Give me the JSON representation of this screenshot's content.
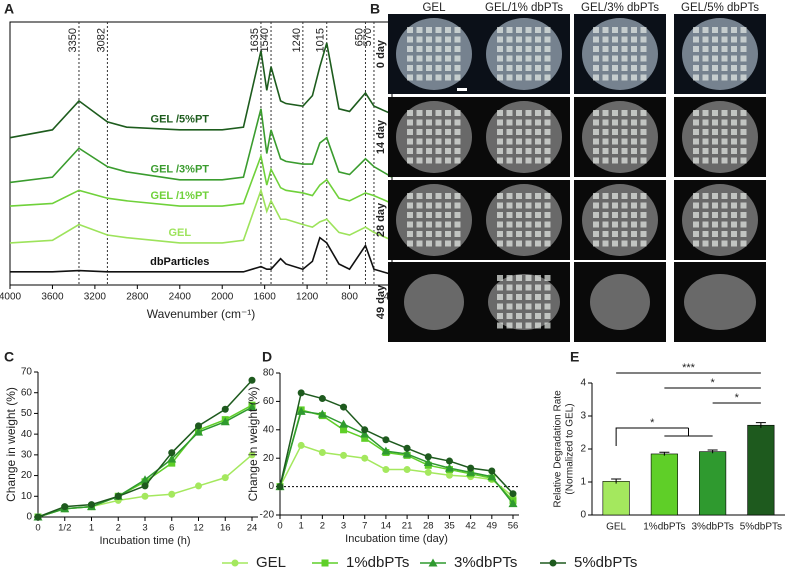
{
  "chart_data": [
    {
      "label": "A",
      "type": "spectrum",
      "xlabel": "Wavenumber (cm⁻¹)",
      "x": [
        4000,
        3600,
        3350,
        3082,
        2900,
        2400,
        2000,
        1800,
        1635,
        1580,
        1540,
        1450,
        1400,
        1240,
        1150,
        1080,
        1015,
        900,
        800,
        650,
        570,
        400
      ],
      "xlim": [
        4000,
        400
      ],
      "xticks": [
        4000,
        3600,
        3200,
        2800,
        2400,
        2000,
        1600,
        1200,
        800,
        400
      ],
      "ylim": [
        0,
        10
      ],
      "peaks": [
        3350,
        3082,
        1635,
        1540,
        1240,
        1015,
        650,
        570
      ],
      "series": [
        {
          "name": "GEL /5%PT",
          "color": "#1d5c1d",
          "values": [
            5.6,
            5.9,
            7.0,
            6.2,
            6.0,
            5.9,
            5.9,
            6.0,
            8.9,
            7.4,
            8.3,
            7.0,
            6.9,
            6.8,
            7.2,
            8.3,
            9.2,
            6.7,
            6.6,
            7.3,
            6.8,
            6.5
          ]
        },
        {
          "name": "GEL /3%PT",
          "color": "#3a9c2e",
          "values": [
            3.9,
            4.1,
            5.2,
            4.5,
            4.3,
            4.0,
            4.0,
            4.1,
            6.7,
            5.0,
            5.9,
            4.8,
            4.7,
            4.6,
            4.6,
            5.4,
            5.6,
            4.3,
            4.2,
            4.8,
            4.5,
            4.1
          ]
        },
        {
          "name": "GEL /1%PT",
          "color": "#6fd13a",
          "values": [
            3.0,
            3.1,
            3.6,
            3.3,
            3.2,
            3.0,
            3.0,
            3.1,
            4.9,
            3.8,
            4.4,
            3.7,
            3.6,
            3.5,
            3.4,
            3.8,
            4.0,
            3.3,
            3.2,
            3.5,
            3.4,
            3.1
          ]
        },
        {
          "name": "GEL",
          "color": "#9de35b",
          "values": [
            1.6,
            1.7,
            2.3,
            1.9,
            1.8,
            1.6,
            1.6,
            1.7,
            3.6,
            2.8,
            3.2,
            2.5,
            2.5,
            2.3,
            2.2,
            2.4,
            2.5,
            2.0,
            1.9,
            2.2,
            2.0,
            1.7
          ]
        },
        {
          "name": "dbParticles",
          "color": "#111111",
          "values": [
            0.5,
            0.5,
            0.55,
            0.5,
            0.5,
            0.5,
            0.5,
            0.5,
            0.7,
            0.6,
            0.6,
            1.0,
            0.8,
            0.6,
            0.9,
            1.8,
            1.6,
            0.8,
            0.6,
            1.5,
            0.6,
            0.4
          ]
        }
      ]
    },
    {
      "label": "C",
      "type": "line",
      "xlabel": "Incubation time (h)",
      "ylabel": "Change in weight (%)",
      "categories": [
        "0",
        "1/2",
        "1",
        "2",
        "3",
        "6",
        "12",
        "16",
        "24"
      ],
      "ylim": [
        0,
        70
      ],
      "yticks": [
        0,
        10,
        20,
        30,
        40,
        50,
        60,
        70
      ],
      "series": [
        {
          "name": "GEL",
          "color": "#a4e85e",
          "marker": "circle",
          "values": [
            0,
            4,
            5,
            8,
            10,
            11,
            15,
            19,
            30
          ]
        },
        {
          "name": "1%dbPTs",
          "color": "#5fcf28",
          "marker": "square",
          "values": [
            0,
            4,
            5,
            10,
            17,
            26,
            42,
            47,
            54
          ]
        },
        {
          "name": "3%dbPTs",
          "color": "#2f9a2f",
          "marker": "triangle",
          "values": [
            0,
            4,
            5,
            10,
            18,
            28,
            41,
            46,
            53
          ]
        },
        {
          "name": "5%dbPTs",
          "color": "#1e5a1e",
          "marker": "circle",
          "values": [
            0,
            5,
            6,
            10,
            15,
            31,
            44,
            52,
            66
          ]
        }
      ]
    },
    {
      "label": "D",
      "type": "line",
      "xlabel": "Incubation time (day)",
      "ylabel": "Change in weight (%)",
      "reference_line": true,
      "categories": [
        "0",
        "1",
        "2",
        "3",
        "7",
        "14",
        "21",
        "28",
        "35",
        "42",
        "49",
        "56"
      ],
      "ylim": [
        -20,
        80
      ],
      "yticks": [
        -20,
        0,
        20,
        40,
        60,
        80
      ],
      "series": [
        {
          "name": "GEL",
          "color": "#a4e85e",
          "marker": "circle",
          "values": [
            0,
            29,
            24,
            22,
            20,
            12,
            12,
            10,
            8,
            7,
            5,
            -7
          ]
        },
        {
          "name": "1%dbPTs",
          "color": "#5fcf28",
          "marker": "square",
          "values": [
            0,
            54,
            50,
            40,
            34,
            24,
            22,
            15,
            12,
            9,
            6,
            -10
          ]
        },
        {
          "name": "3%dbPTs",
          "color": "#2f9a2f",
          "marker": "triangle",
          "values": [
            0,
            53,
            51,
            44,
            37,
            25,
            23,
            17,
            13,
            10,
            7,
            -12
          ]
        },
        {
          "name": "5%dbPTs",
          "color": "#1e5a1e",
          "marker": "circle",
          "values": [
            0,
            66,
            62,
            56,
            40,
            33,
            27,
            21,
            18,
            13,
            11,
            -5
          ]
        }
      ]
    },
    {
      "label": "E",
      "type": "bar",
      "ylabel": [
        "Relative Degradation Rate",
        "(Normalized to GEL)"
      ],
      "categories": [
        "GEL",
        "1%dbPTs",
        "3%dbPTs",
        "5%dbPTs"
      ],
      "values": [
        1.02,
        1.85,
        1.92,
        2.72
      ],
      "errors": [
        0.07,
        0.05,
        0.05,
        0.08
      ],
      "colors": [
        "#a4e85e",
        "#5fcf28",
        "#2f9a2f",
        "#1e5a1e"
      ],
      "ylim": [
        0,
        4
      ],
      "yticks": [
        0,
        1,
        2,
        3,
        4
      ],
      "significance": [
        {
          "label": "***",
          "groups": [
            "GEL",
            "5%dbPTs"
          ]
        },
        {
          "label": "*",
          "groups": [
            "1%dbPTs",
            "5%dbPTs"
          ]
        },
        {
          "label": "*",
          "groups": [
            "3%dbPTs",
            "5%dbPTs"
          ]
        },
        {
          "label": "*",
          "groups": [
            "GEL",
            "1%dbPTs",
            "3%dbPTs"
          ]
        }
      ]
    }
  ],
  "image_grid": {
    "label": "B",
    "columns": [
      "GEL",
      "GEL/1% dbPTs",
      "GEL/3% dbPTs",
      "GEL/5% dbPTs"
    ],
    "rows": [
      "0 day",
      "14 day",
      "28 day",
      "49 day"
    ]
  }
}
